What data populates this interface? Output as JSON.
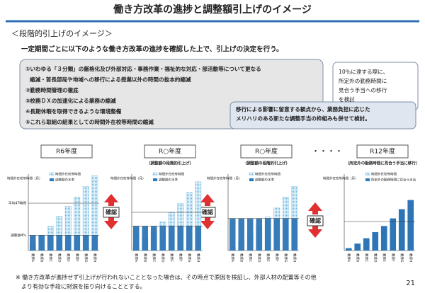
{
  "header": {
    "title": "働き方改革の進捗と調整額引上げのイメージ",
    "subtitle": "＜段階的引上げのイメージ＞",
    "lead": "一定期間ごとに以下のような働き方改革の進捗を確認した上で、引上げの決定を行う。"
  },
  "measures": {
    "lines": [
      "①いわゆる「３分類」の厳格化及び外部対応・事務作業・福祉的な対応・部活動等について更なる",
      "縮減・首長部局や地域への移行による授業以外の時間の抜本的縮減",
      "②勤務時間管理の徹底",
      "③校務ＤＸの加速化による業務の縮減",
      "④長期休暇を取得できるような環境整備",
      "⑤これら取組の結果としての時間外在校等時間の縮減"
    ]
  },
  "transition_box": {
    "lines": [
      "10％に達する際に、",
      "所定外の勤務時間に",
      "見合う手当への移行",
      "を検討"
    ]
  },
  "consideration_box": {
    "lines": [
      "移行による影響に留意する観点から、業務負担に応じた",
      "メリハリのある新たな調整手当の枠組みも併せて検討。"
    ]
  },
  "ellipsis": "・・・・",
  "confirm_label": "確認",
  "teachers": [
    "教師A",
    "教師B",
    "教師C",
    "教師D",
    "教師E",
    "教師F",
    "教師G",
    "教師H"
  ],
  "panels": [
    {
      "year": "R6年度",
      "y_axis_label": "時間外在校等時間（月）",
      "legend": [
        "時間外在校等時間",
        "調整額の水準"
      ],
      "overtime": [
        8,
        20,
        32,
        45,
        58,
        70,
        84,
        98
      ],
      "allowance": [
        20,
        20,
        20,
        20,
        20,
        20,
        20,
        20
      ],
      "ref_lines": [
        {
          "value": 62,
          "label": "平均47時間"
        },
        {
          "value": 20,
          "label": "調整額4%"
        }
      ]
    },
    {
      "year": "R○年度",
      "note": "（調整額の段階的引上げ）",
      "y_axis_label": "時間外在校等時間（月）",
      "legend": [
        "時間外在校等時間",
        "調整額の水準"
      ],
      "overtime": [
        6,
        16,
        26,
        38,
        50,
        62,
        76,
        90
      ],
      "allowance": [
        32,
        32,
        32,
        32,
        32,
        32,
        32,
        32
      ],
      "ref_lines": [
        {
          "value": 50
        },
        {
          "value": 32
        }
      ]
    },
    {
      "year": "R○年度",
      "note": "（調整額の段階的引上げ）",
      "y_axis_label": "時間外在校等時間（月）",
      "legend": [
        "時間外在校等時間",
        "調整額の水準"
      ],
      "overtime": [
        4,
        12,
        22,
        33,
        44,
        56,
        70,
        84
      ],
      "allowance": [
        42,
        42,
        42,
        42,
        42,
        42,
        42,
        42
      ],
      "ref_lines": [
        {
          "value": 42
        }
      ]
    },
    {
      "year": "R12年度",
      "note": "（所定外の勤務時間に見合う手当に移行）",
      "y_axis_label": "時間外在校等時間（月）",
      "legend": [
        "時間外在校等時間",
        "所定外の勤務時間に見合う手当"
      ],
      "overtime": [
        3,
        9,
        16,
        24,
        32,
        42,
        54,
        66
      ],
      "allowance": [
        3,
        9,
        16,
        24,
        32,
        42,
        54,
        66
      ],
      "ref_lines": [
        {
          "value": 38
        }
      ]
    }
  ],
  "footnote": {
    "lines": [
      "※ 働き方改革が進捗せず引上げが行われないこととなった場合は、その時点で原因を検証し、外部人材の配置等その他",
      "より有効な手段に財源を振り向けることとする。"
    ]
  },
  "page_number": "21"
}
